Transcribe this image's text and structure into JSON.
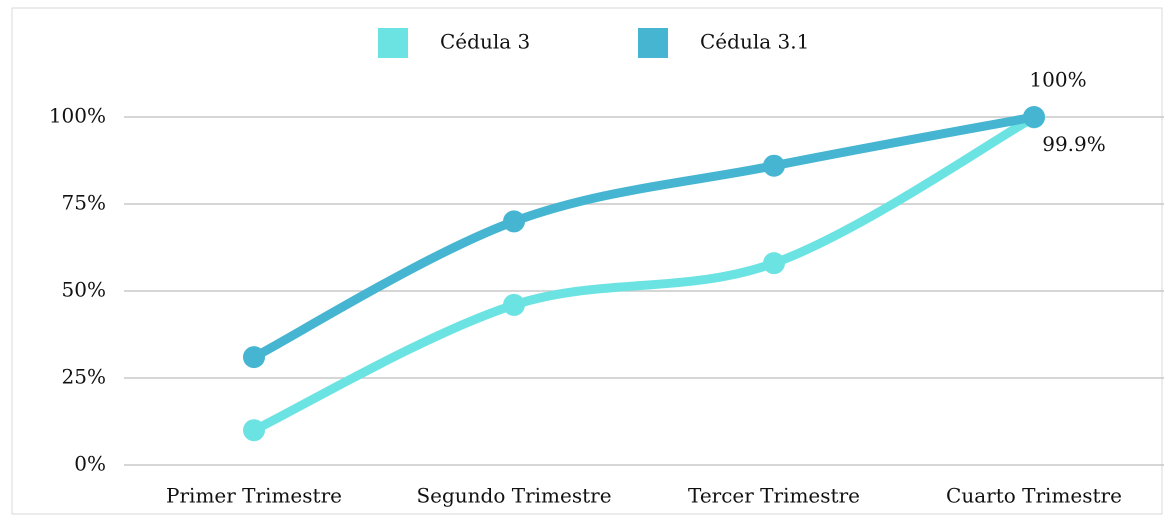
{
  "chart_data": {
    "type": "line",
    "categories": [
      "Primer Trimestre",
      "Segundo Trimestre",
      "Tercer Trimestre",
      "Cuarto Trimestre"
    ],
    "series": [
      {
        "name": "Cédula 3",
        "color": "#6ce3e3",
        "values": [
          10,
          46,
          58,
          99.9
        ],
        "value_labels": [
          null,
          null,
          null,
          "99.9%"
        ]
      },
      {
        "name": "Cédula 3.1",
        "color": "#45b5d1",
        "values": [
          31,
          70,
          86,
          100
        ],
        "value_labels": [
          null,
          null,
          null,
          "100%"
        ]
      }
    ],
    "ylim": [
      0,
      100
    ],
    "yticks": [
      {
        "value": 0,
        "label": "0%"
      },
      {
        "value": 25,
        "label": "25%"
      },
      {
        "value": 50,
        "label": "50%"
      },
      {
        "value": 75,
        "label": "75%"
      },
      {
        "value": 100,
        "label": "100%"
      }
    ],
    "grid": true,
    "legend": "top",
    "smooth": true
  }
}
